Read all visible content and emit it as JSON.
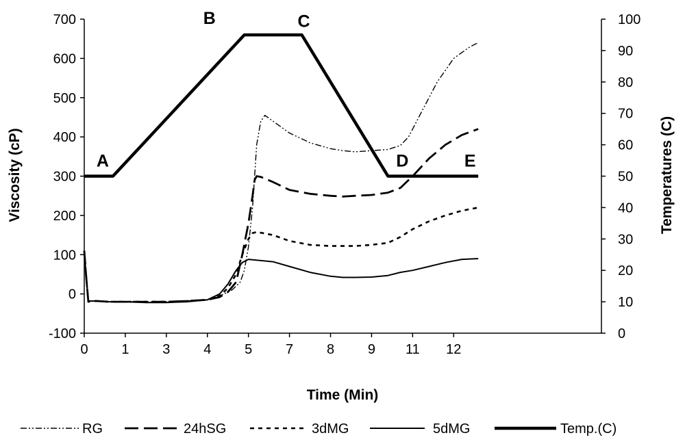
{
  "chart_data": {
    "type": "line",
    "xlabel": "Time (Min)",
    "ylabel": "Viscosity (cP)",
    "y2label": "Temperatures (C)",
    "x_range": [
      0,
      12.6
    ],
    "ylim": [
      -100,
      700
    ],
    "y2lim": [
      0,
      100
    ],
    "x_ticks": [
      {
        "value": 0,
        "label": "0"
      },
      {
        "value": 1,
        "label": "1"
      },
      {
        "value": 2,
        "label": "3"
      },
      {
        "value": 3,
        "label": "4"
      },
      {
        "value": 4,
        "label": "5"
      },
      {
        "value": 5,
        "label": "7"
      },
      {
        "value": 6,
        "label": "8"
      },
      {
        "value": 7,
        "label": "9"
      },
      {
        "value": 8,
        "label": "11"
      },
      {
        "value": 9,
        "label": "12"
      }
    ],
    "y_ticks": [
      "-100",
      "0",
      "100",
      "200",
      "300",
      "400",
      "500",
      "600",
      "700"
    ],
    "y2_ticks": [
      "0",
      "10",
      "20",
      "30",
      "40",
      "50",
      "60",
      "70",
      "80",
      "90",
      "100"
    ],
    "series": [
      {
        "name": "RG",
        "axis": "left",
        "color": "#000000",
        "x": [
          0,
          0.05,
          0.1,
          0.15,
          0.3,
          0.6,
          1.0,
          1.5,
          2.0,
          2.5,
          3.0,
          3.3,
          3.6,
          3.8,
          3.9,
          4.0,
          4.1,
          4.15,
          4.2,
          4.3,
          4.4,
          4.6,
          5.0,
          5.5,
          6.0,
          6.3,
          6.6,
          7.0,
          7.4,
          7.7,
          7.9,
          8.0,
          8.2,
          8.6,
          9.0,
          9.4,
          9.6
        ],
        "y": [
          110,
          40,
          -20,
          -18,
          -18,
          -20,
          -20,
          -20,
          -20,
          -18,
          -15,
          -5,
          10,
          30,
          60,
          120,
          220,
          300,
          380,
          440,
          455,
          440,
          410,
          385,
          370,
          365,
          362,
          365,
          368,
          378,
          400,
          420,
          460,
          540,
          600,
          630,
          640
        ]
      },
      {
        "name": "24hSG",
        "axis": "left",
        "color": "#000000",
        "x": [
          0,
          0.05,
          0.1,
          0.15,
          0.3,
          0.6,
          1.0,
          1.5,
          2.0,
          2.5,
          3.0,
          3.3,
          3.5,
          3.7,
          3.85,
          4.0,
          4.1,
          4.15,
          4.2,
          4.3,
          4.6,
          5.0,
          5.5,
          6.0,
          6.3,
          6.6,
          7.0,
          7.4,
          7.7,
          8.0,
          8.4,
          8.8,
          9.2,
          9.6
        ],
        "y": [
          110,
          40,
          -20,
          -18,
          -18,
          -20,
          -20,
          -20,
          -20,
          -18,
          -15,
          -8,
          5,
          30,
          100,
          180,
          250,
          290,
          300,
          298,
          285,
          265,
          255,
          250,
          248,
          250,
          252,
          258,
          270,
          300,
          345,
          380,
          405,
          420
        ]
      },
      {
        "name": "3dMG",
        "axis": "left",
        "color": "#000000",
        "x": [
          0,
          0.05,
          0.1,
          0.15,
          0.3,
          0.6,
          1.0,
          1.5,
          2.0,
          2.5,
          3.0,
          3.3,
          3.5,
          3.7,
          3.85,
          4.0,
          4.1,
          4.2,
          4.6,
          5.0,
          5.5,
          6.0,
          6.3,
          6.6,
          7.0,
          7.4,
          7.7,
          8.0,
          8.4,
          8.8,
          9.2,
          9.6
        ],
        "y": [
          110,
          40,
          -20,
          -18,
          -18,
          -20,
          -20,
          -20,
          -20,
          -18,
          -15,
          -5,
          15,
          50,
          100,
          140,
          155,
          158,
          150,
          135,
          125,
          122,
          122,
          122,
          125,
          130,
          145,
          165,
          185,
          200,
          212,
          220
        ]
      },
      {
        "name": "5dMG",
        "axis": "left",
        "color": "#000000",
        "x": [
          0,
          0.05,
          0.1,
          0.15,
          0.3,
          0.6,
          1.0,
          1.5,
          2.0,
          2.5,
          3.0,
          3.3,
          3.5,
          3.7,
          3.85,
          4.0,
          4.6,
          5.0,
          5.5,
          6.0,
          6.3,
          6.6,
          7.0,
          7.4,
          7.7,
          8.0,
          8.4,
          8.8,
          9.2,
          9.6
        ],
        "y": [
          110,
          40,
          -20,
          -18,
          -18,
          -20,
          -20,
          -22,
          -22,
          -20,
          -15,
          0,
          25,
          60,
          80,
          88,
          82,
          70,
          55,
          45,
          42,
          42,
          43,
          47,
          55,
          60,
          70,
          80,
          88,
          90
        ]
      },
      {
        "name": "Temp.(C)",
        "axis": "right",
        "color": "#000000",
        "x": [
          0,
          0.7,
          3.9,
          5.3,
          7.4,
          9.6
        ],
        "y": [
          50,
          50,
          95,
          95,
          50,
          50
        ]
      }
    ],
    "annotations": [
      {
        "text": "A",
        "x": 0.45,
        "y2": 53
      },
      {
        "text": "B",
        "x": 3.05,
        "y2": 98.5
      },
      {
        "text": "C",
        "x": 5.35,
        "y2": 97.5
      },
      {
        "text": "D",
        "x": 7.75,
        "y2": 53
      },
      {
        "text": "E",
        "x": 9.4,
        "y2": 53
      }
    ]
  }
}
